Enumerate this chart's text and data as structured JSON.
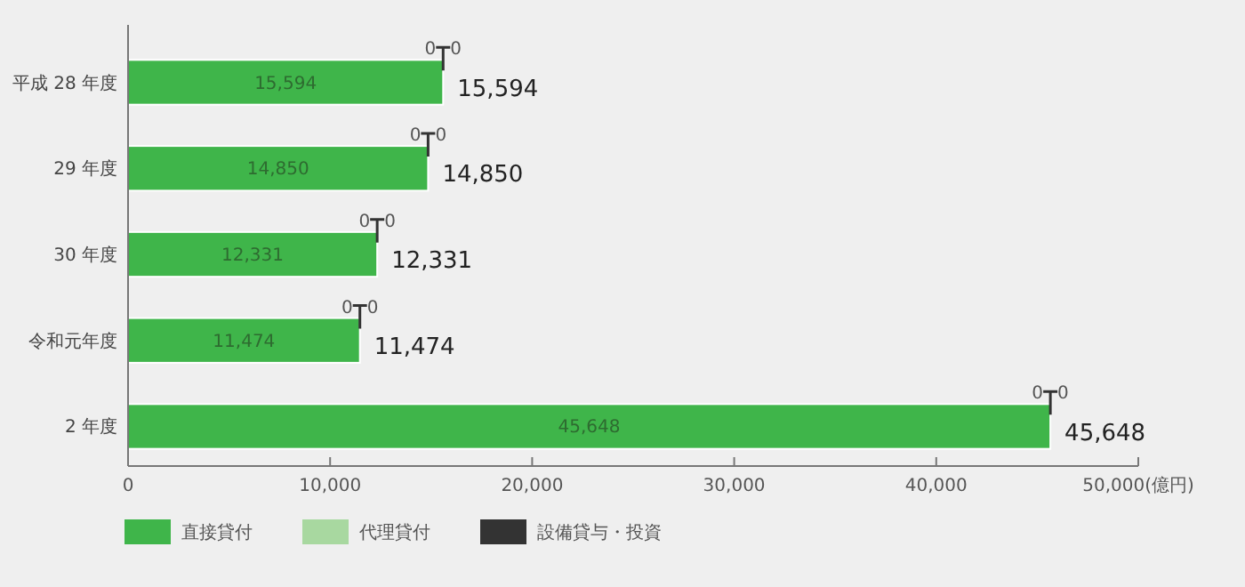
{
  "chart_data": {
    "type": "bar",
    "orientation": "horizontal",
    "stacked": true,
    "categories": [
      "平成 28 年度",
      "29 年度",
      "30 年度",
      "令和元年度",
      "2 年度"
    ],
    "series": [
      {
        "name": "直接貸付",
        "color": "#3fb54a",
        "values": [
          15594,
          14850,
          12331,
          11474,
          45648
        ],
        "value_labels": [
          "15,594",
          "14,850",
          "12,331",
          "11,474",
          "45,648"
        ]
      },
      {
        "name": "代理貸付",
        "color": "#a8d8a0",
        "values": [
          0,
          0,
          0,
          0,
          0
        ],
        "value_labels": [
          "0",
          "0",
          "0",
          "0",
          "0"
        ]
      },
      {
        "name": "設備貸与・投資",
        "color": "#333333",
        "values": [
          0,
          0,
          0,
          0,
          0
        ],
        "value_labels": [
          "0",
          "0",
          "0",
          "0",
          "0"
        ]
      }
    ],
    "totals": [
      "15,594",
      "14,850",
      "12,331",
      "11,474",
      "45,648"
    ],
    "xlim": [
      0,
      50000
    ],
    "xticks": [
      0,
      {
        "value": 10000,
        "label": "10,000"
      },
      {
        "value": 20000,
        "label": "20,000"
      },
      {
        "value": 30000,
        "label": "30,000"
      },
      {
        "value": 40000,
        "label": "40,000"
      },
      {
        "value": 50000,
        "label": "50,000(億円)"
      }
    ],
    "grid": false,
    "legend": "bottom left"
  }
}
